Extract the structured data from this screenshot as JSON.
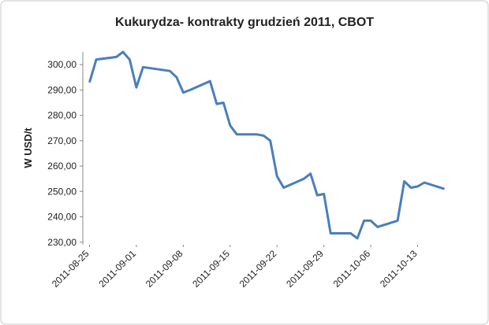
{
  "chart_data": {
    "type": "line",
    "title": "Kukurydza- kontrakty grudzień 2011, CBOT",
    "y_label": "W USD/t",
    "x": [
      "2011-08-25",
      "2011-08-26",
      "2011-08-29",
      "2011-08-30",
      "2011-08-31",
      "2011-09-01",
      "2011-09-02",
      "2011-09-06",
      "2011-09-07",
      "2011-09-08",
      "2011-09-09",
      "2011-09-12",
      "2011-09-13",
      "2011-09-14",
      "2011-09-15",
      "2011-09-16",
      "2011-09-19",
      "2011-09-20",
      "2011-09-21",
      "2011-09-22",
      "2011-09-23",
      "2011-09-26",
      "2011-09-27",
      "2011-09-28",
      "2011-09-29",
      "2011-09-30",
      "2011-10-03",
      "2011-10-04",
      "2011-10-05",
      "2011-10-06",
      "2011-10-07",
      "2011-10-10",
      "2011-10-11",
      "2011-10-12",
      "2011-10-13",
      "2011-10-14",
      "2011-10-17"
    ],
    "series": [
      {
        "name": "Kukurydza",
        "color": "#4a7ebb",
        "values": [
          293,
          302,
          303,
          305,
          302,
          291,
          299,
          297.5,
          295,
          289,
          290,
          293.5,
          284.5,
          285,
          276,
          272.5,
          272.5,
          272,
          270,
          256,
          251.5,
          255,
          257,
          248.5,
          249,
          233.5,
          233.5,
          231.5,
          238.5,
          238.5,
          236,
          238.5,
          254,
          251.5,
          252,
          253.5,
          251
        ]
      }
    ],
    "xlim": [
      "2011-08-24",
      "2011-10-18"
    ],
    "xticks": [
      "2011-08-25",
      "2011-09-01",
      "2011-09-08",
      "2011-09-15",
      "2011-09-22",
      "2011-09-29",
      "2011-10-06",
      "2011-10-13"
    ],
    "ylim": [
      229,
      305
    ],
    "yticks": [
      {
        "value": 230,
        "label": "230,00"
      },
      {
        "value": 240,
        "label": "240,00"
      },
      {
        "value": 250,
        "label": "250,00"
      },
      {
        "value": 260,
        "label": "260,00"
      },
      {
        "value": 270,
        "label": "270,00"
      },
      {
        "value": 280,
        "label": "280,00"
      },
      {
        "value": 290,
        "label": "290,00"
      },
      {
        "value": 300,
        "label": "300,00"
      }
    ],
    "grid": false
  }
}
